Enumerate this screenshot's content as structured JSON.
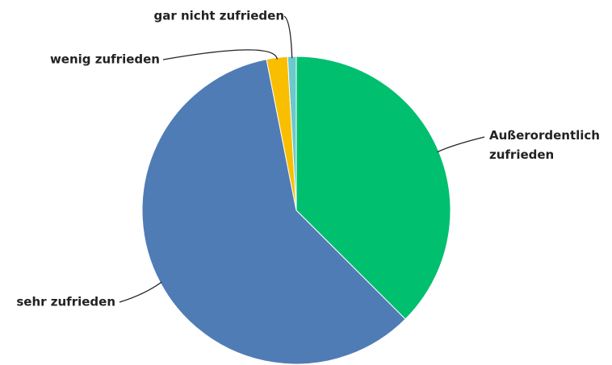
{
  "chart_data": {
    "type": "pie",
    "categories": [
      "Außerordentlich zufrieden",
      "sehr zufrieden",
      "wenig zufrieden",
      "gar nicht zufrieden"
    ],
    "values": [
      37.5,
      59.4,
      2.2,
      0.9
    ],
    "colors": [
      "#00bf6f",
      "#507cb6",
      "#f9be00",
      "#6bc8cd"
    ]
  }
}
